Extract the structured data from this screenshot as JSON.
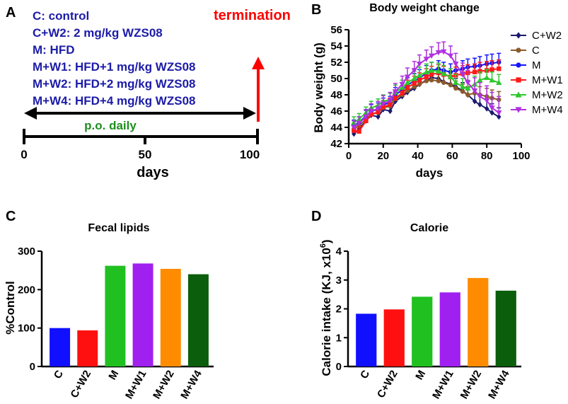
{
  "colors": {
    "blue_text": "#1c1ca8",
    "red": "#ff0000",
    "green": "#1e8f1e",
    "black": "#000000",
    "C+W2": "#1a1a6e",
    "C": "#8b5a2b",
    "M": "#1515ff",
    "M+W1": "#ff1a1a",
    "M+W2": "#2ec82e",
    "M+W4": "#b030e0",
    "bar_C": "#1010ff",
    "bar_C+W2": "#ff1010",
    "bar_M": "#20c020",
    "bar_M+W1": "#a020f0",
    "bar_M+W2": "#ff8c00",
    "bar_M+W4": "#0b5e0b"
  },
  "panel_a": {
    "letter": "A",
    "legend_lines": [
      "C: control",
      "C+W2: 2 mg/kg WZS08",
      "M: HFD",
      "M+W1: HFD+1 mg/kg WZS08",
      "M+W2: HFD+2 mg/kg WZS08",
      "M+W4: HFD+4 mg/kg WZS08"
    ],
    "termination": "termination",
    "dosing": "p.o. daily",
    "timeline_ticks": [
      "0",
      "50",
      "100"
    ],
    "timeline_range": [
      0,
      100
    ],
    "xlabel": "days"
  },
  "chart_data": [
    {
      "id": "B",
      "letter": "B",
      "type": "line",
      "title": "Body weight change",
      "xlabel": "days",
      "ylabel": "Body weight (g)",
      "xlim": [
        0,
        100
      ],
      "ylim": [
        42,
        56
      ],
      "xticks": [
        0,
        20,
        40,
        60,
        80,
        100
      ],
      "yticks": [
        42,
        44,
        46,
        48,
        50,
        52,
        54,
        56
      ],
      "x": [
        3,
        6,
        10,
        13,
        17,
        20,
        24,
        27,
        31,
        34,
        38,
        41,
        45,
        48,
        52,
        55,
        59,
        62,
        66,
        69,
        73,
        76,
        80,
        83,
        87
      ],
      "series": [
        {
          "name": "C+W2",
          "marker": "diamond",
          "values": [
            43.2,
            43.8,
            44.8,
            45.5,
            45.3,
            46.2,
            46.0,
            47.2,
            47.8,
            48.3,
            48.8,
            49.3,
            49.8,
            50.1,
            50.0,
            49.6,
            49.3,
            49.0,
            48.5,
            48.0,
            47.2,
            46.8,
            46.3,
            45.8,
            45.3
          ],
          "errors": [
            0.6,
            0.6,
            0.7,
            0.7,
            0.7,
            0.8,
            0.8,
            0.8,
            0.8,
            0.9,
            0.9,
            0.9,
            0.9,
            1.0,
            1.0,
            1.0,
            1.0,
            1.0,
            1.0,
            1.0,
            1.0,
            1.1,
            1.1,
            1.1,
            1.1
          ]
        },
        {
          "name": "C",
          "marker": "circle",
          "values": [
            43.8,
            44.2,
            45.0,
            45.6,
            45.8,
            46.4,
            46.6,
            47.5,
            48.0,
            48.5,
            49.0,
            49.3,
            49.7,
            49.8,
            49.7,
            49.5,
            49.2,
            48.8,
            48.4,
            48.0,
            48.2,
            48.0,
            47.8,
            47.6,
            47.4
          ],
          "errors": [
            0.6,
            0.6,
            0.7,
            0.7,
            0.7,
            0.7,
            0.8,
            0.8,
            0.8,
            0.8,
            0.8,
            0.9,
            0.9,
            0.9,
            0.9,
            0.9,
            0.9,
            0.9,
            0.9,
            1.0,
            1.0,
            1.0,
            1.0,
            1.0,
            1.0
          ]
        },
        {
          "name": "M",
          "marker": "circle",
          "values": [
            44.2,
            44.6,
            45.4,
            46.0,
            46.2,
            46.8,
            47.0,
            48.0,
            48.6,
            49.2,
            49.7,
            50.1,
            50.6,
            51.0,
            51.2,
            51.0,
            50.8,
            51.0,
            51.2,
            51.4,
            51.5,
            51.6,
            51.8,
            51.9,
            52.0
          ],
          "errors": [
            0.7,
            0.7,
            0.7,
            0.8,
            0.8,
            0.8,
            0.8,
            0.9,
            0.9,
            0.9,
            0.9,
            1.0,
            1.0,
            1.0,
            1.0,
            1.0,
            1.0,
            1.0,
            1.0,
            1.0,
            1.0,
            1.1,
            1.1,
            1.1,
            1.1
          ]
        },
        {
          "name": "M+W1",
          "marker": "square",
          "values": [
            43.6,
            43.5,
            44.8,
            45.6,
            45.9,
            46.5,
            46.8,
            47.6,
            48.2,
            48.9,
            49.4,
            49.8,
            50.2,
            50.5,
            50.7,
            50.5,
            50.2,
            50.4,
            50.6,
            50.7,
            50.8,
            50.9,
            51.0,
            51.1,
            51.2
          ],
          "errors": [
            0.6,
            0.6,
            0.7,
            0.7,
            0.8,
            0.8,
            0.8,
            0.8,
            0.9,
            0.9,
            0.9,
            0.9,
            1.0,
            1.0,
            1.0,
            1.0,
            1.0,
            1.0,
            1.0,
            1.0,
            1.0,
            1.1,
            1.1,
            1.1,
            1.1
          ]
        },
        {
          "name": "M+W2",
          "marker": "triangle-up",
          "values": [
            44.6,
            45.0,
            45.8,
            46.4,
            46.7,
            47.2,
            47.4,
            48.3,
            48.9,
            49.5,
            50.0,
            50.4,
            50.8,
            51.0,
            50.9,
            50.6,
            50.2,
            49.5,
            49.0,
            48.8,
            49.3,
            49.8,
            50.1,
            49.8,
            49.5
          ],
          "errors": [
            0.7,
            0.7,
            0.7,
            0.8,
            0.8,
            0.8,
            0.8,
            0.9,
            0.9,
            0.9,
            0.9,
            1.0,
            1.0,
            1.0,
            1.0,
            1.0,
            1.0,
            1.0,
            1.0,
            1.0,
            1.0,
            1.0,
            1.0,
            1.0,
            1.0
          ]
        },
        {
          "name": "M+W4",
          "marker": "triangle-down",
          "values": [
            44.0,
            44.5,
            45.3,
            46.0,
            46.3,
            46.9,
            47.3,
            48.4,
            49.3,
            50.2,
            51.0,
            51.8,
            52.4,
            52.8,
            53.2,
            53.3,
            52.8,
            51.8,
            50.5,
            49.5,
            48.5,
            47.8,
            47.3,
            46.4,
            45.8
          ],
          "errors": [
            0.8,
            0.8,
            0.9,
            0.9,
            0.9,
            1.0,
            1.0,
            1.0,
            1.0,
            1.1,
            1.1,
            1.1,
            1.1,
            1.1,
            1.2,
            1.2,
            1.2,
            1.3,
            1.4,
            1.5,
            1.6,
            1.7,
            1.8,
            1.9,
            2.0
          ]
        }
      ]
    },
    {
      "id": "C",
      "letter": "C",
      "type": "bar",
      "title": "Fecal lipids",
      "ylabel": "%Control",
      "categories": [
        "C",
        "C+W2",
        "M",
        "M+W1",
        "M+W2",
        "M+W4"
      ],
      "values": [
        100,
        94,
        262,
        268,
        254,
        240
      ],
      "ylim": [
        0,
        300
      ],
      "yticks": [
        0,
        100,
        200,
        300
      ]
    },
    {
      "id": "D",
      "letter": "D",
      "type": "bar",
      "title": "Calorie",
      "ylabel": "Calorie intake (KJ, x10",
      "ylabel_sup": "6",
      "ylabel_end": ")",
      "categories": [
        "C",
        "C+W2",
        "M",
        "M+W1",
        "M+W2",
        "M+W4"
      ],
      "values": [
        1.83,
        1.98,
        2.42,
        2.57,
        3.07,
        2.63
      ],
      "ylim": [
        0,
        4
      ],
      "yticks": [
        0,
        1,
        2,
        3,
        4
      ]
    }
  ]
}
